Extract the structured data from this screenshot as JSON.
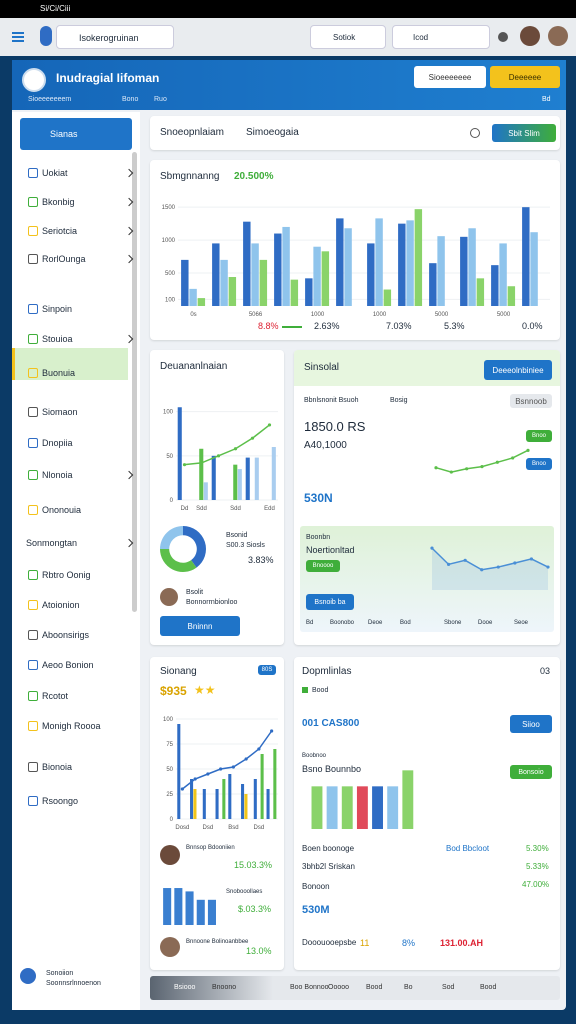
{
  "status_bar": {
    "left": "Si/Ci/Ciii"
  },
  "toolbar": {
    "search": "Isokerogruinan",
    "select": "Sotiok",
    "input": "Icod"
  },
  "banner": {
    "title": "Inudragial Iifoman",
    "meta": [
      "Sioeeeeeeem",
      "Bono",
      "Ruo"
    ],
    "button_1": "Sioeeeeeee",
    "button_2": "Deeeeee",
    "right": "Bd"
  },
  "sidebar": {
    "active": "Sianas",
    "items": [
      {
        "label": "Uokiat",
        "chevron": true
      },
      {
        "label": "Bkonbig",
        "chevron": true
      },
      {
        "label": "Seriotcia",
        "chevron": true
      },
      {
        "label": "RorlOunga",
        "chevron": true
      },
      {
        "label": "Sinpoin",
        "chevron": false
      },
      {
        "label": "Stouioa",
        "chevron": true
      },
      {
        "label": "Buonuia",
        "chevron": false
      },
      {
        "label": "Siomaon",
        "chevron": false
      },
      {
        "label": "Dnopiia",
        "chevron": false
      },
      {
        "label": "Nlonoia",
        "chevron": true
      },
      {
        "label": "Ononouia",
        "chevron": false
      }
    ],
    "section": "Sonmongtan",
    "section_items": [
      "Rbtro Oonig",
      "Atoionion",
      "Aboonsirigs",
      "Aeoo Bonion",
      "Rcotot",
      "Monigh Roooa",
      "Bionoia",
      "Rsoongo"
    ],
    "footer": [
      "Sonoiion",
      "Soonnsrlnnoenon"
    ]
  },
  "header_card": {
    "tab_1": "Snoeopnlaiam",
    "tab_2": "Simoeogaia",
    "button": "Sbit Slim"
  },
  "main_card": {
    "footer_values": [
      "8.8%",
      "2.63%",
      "7.03%",
      "5.3%",
      "0.0%"
    ]
  },
  "card_left": {
    "title": "Deuananlnaian",
    "legend": [
      "Bsonid",
      "S00.3 Siosls"
    ],
    "value": "3.83%",
    "person": [
      "Bsolit",
      "Bonnorrnbionloo"
    ],
    "button": "Bninnn"
  },
  "card_right": {
    "title": "Sinsolal",
    "button": "Deeeolnbiniee",
    "row": [
      "Bbnlsnonit Bsuoh",
      "Bosig"
    ],
    "chip": "Bsnnoob",
    "value_1": "1850.0 RS",
    "value_2": "A40,1000",
    "button_green": "Bnoo",
    "button_blue": "Bnoo",
    "value_3": "530N",
    "area_title": [
      "Boonbn",
      "Noertionltad"
    ],
    "area_chip": "Bnoooo",
    "area_button": "Bsnoib ba",
    "area_labels": [
      "Bd",
      "Boonobo",
      "Deoe",
      "Bod",
      "Sbone",
      "Dooe",
      "Seoe"
    ]
  },
  "card_3": {
    "title": "Sionang",
    "chip": "80S",
    "value": "$935",
    "stars": "★★",
    "rows": [
      [
        "Bnnsop Bdooniien",
        "15.03.3%"
      ],
      [
        "Snobooollaes",
        "$.03.3%"
      ],
      [
        "Bnnoone Bolinoanbbee",
        "13.0%"
      ]
    ]
  },
  "card_4": {
    "title": "Dopmlinlas",
    "count": "03",
    "chip": "Bood",
    "code": "001 CAS800",
    "button": "Siioo",
    "label": [
      "Boobnoo",
      "Bsno Bounnbo"
    ],
    "button_green": "Bonsoio",
    "rows": [
      [
        "Boen boonoge",
        "Bod Bbcloot",
        "5.30%"
      ],
      [
        "3bhb2l Sriskan",
        "5.33%"
      ],
      [
        "Bonoon",
        "47.00%"
      ]
    ],
    "total": "530M",
    "footer": [
      "Dooouooepsbe",
      "11",
      "8%",
      "131.00.AH"
    ]
  },
  "bottom_bar": [
    "Bsiooo",
    "Bnoono",
    "Boo Bonnoo",
    "Ooooo",
    "Bood",
    "Bo",
    "Sod",
    "Bood"
  ],
  "chart_data": [
    {
      "type": "bar",
      "title": "Sbmgnnanng",
      "subtitle": "20.500%",
      "categories": [
        "0s",
        null,
        "5066",
        null,
        "1000",
        null,
        "1000",
        null,
        "5000",
        null,
        "5000",
        null
      ],
      "series": [
        {
          "color": "#2f6cc4",
          "values": [
            700,
            950,
            1280,
            1100,
            420,
            1330,
            950,
            1250,
            650,
            1050,
            620,
            1500
          ]
        },
        {
          "color": "#8fc4ec",
          "values": [
            260,
            700,
            950,
            1200,
            900,
            1180,
            1330,
            1300,
            1060,
            1180,
            950,
            1120
          ]
        },
        {
          "color": "#8ad36a",
          "values": [
            120,
            440,
            700,
            400,
            830,
            0,
            250,
            1470,
            0,
            420,
            300,
            0
          ]
        }
      ],
      "ylim": [
        0,
        1700
      ],
      "yticks": [
        100,
        500,
        1000,
        1500
      ]
    },
    {
      "type": "bar",
      "categories": [
        "Dd",
        "Sdd",
        null,
        "Sdd",
        null,
        "Edd"
      ],
      "series": [
        {
          "color": "#2f6cc4",
          "values": [
            105,
            0,
            50,
            0,
            48,
            0
          ]
        },
        {
          "color": "#5cbf4a",
          "values": [
            0,
            58,
            0,
            40,
            0,
            0
          ]
        },
        {
          "color": "#a9cdef",
          "values": [
            0,
            20,
            0,
            35,
            48,
            60
          ]
        },
        {
          "type": "line",
          "color": "#5cbf4a",
          "values": [
            40,
            42,
            50,
            58,
            70,
            85
          ]
        }
      ],
      "ylim": [
        0,
        120
      ],
      "yticks": [
        0,
        50,
        100
      ]
    },
    {
      "type": "pie",
      "donut": true,
      "values": [
        40,
        35,
        25
      ],
      "colors": [
        "#2f6cc4",
        "#5cbf4a",
        "#8fc4ec"
      ]
    },
    {
      "type": "line",
      "values": [
        30,
        22,
        28,
        32,
        40,
        48,
        62
      ],
      "color": "#5cbf4a",
      "ylim": [
        0,
        70
      ]
    },
    {
      "type": "line",
      "area": true,
      "values": [
        62,
        38,
        44,
        30,
        34,
        40,
        46,
        34
      ],
      "color": "#4a8fd6",
      "ylim": [
        0,
        80
      ]
    },
    {
      "type": "bar",
      "categories": [
        "Dosd",
        null,
        "Dsd",
        null,
        "Bsd",
        null,
        "Dsd",
        null
      ],
      "series": [
        {
          "color": "#2f6cc4",
          "values": [
            95,
            40,
            30,
            30,
            45,
            35,
            40,
            30
          ]
        },
        {
          "color": "#f0c419",
          "values": [
            0,
            30,
            0,
            0,
            0,
            25,
            0,
            0
          ]
        },
        {
          "color": "#5cbf4a",
          "values": [
            0,
            0,
            0,
            40,
            0,
            0,
            65,
            70
          ]
        },
        {
          "type": "line",
          "color": "#2f6cc4",
          "values": [
            30,
            40,
            45,
            50,
            52,
            60,
            70,
            88
          ]
        }
      ],
      "ylim": [
        0,
        110
      ],
      "yticks": [
        0,
        25,
        50,
        75,
        100
      ]
    },
    {
      "type": "bar",
      "values": [
        88,
        88,
        80,
        60,
        60
      ],
      "color": "#3a7fd0",
      "ylim": [
        0,
        100
      ]
    },
    {
      "type": "bar",
      "values": [
        80,
        80,
        80,
        80,
        80,
        80,
        110
      ],
      "colors": [
        "#8ad36a",
        "#8fc4ec",
        "#8ad36a",
        "#e04a5a",
        "#2f6cc4",
        "#8fc4ec",
        "#8ad36a"
      ],
      "ylim": [
        0,
        120
      ]
    }
  ]
}
